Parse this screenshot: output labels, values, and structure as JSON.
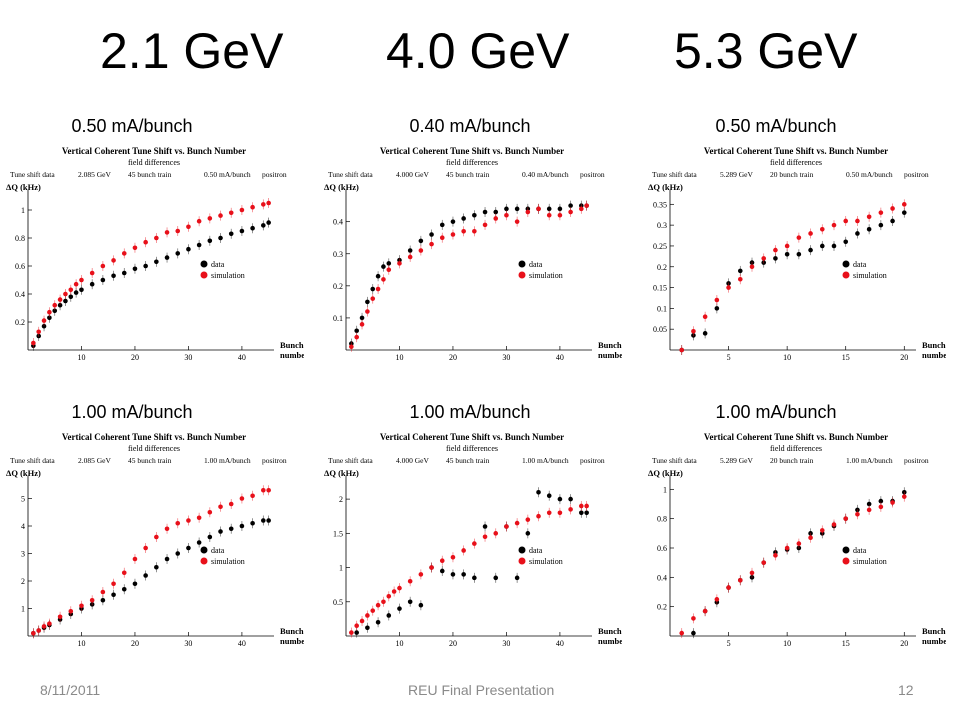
{
  "headings": {
    "energies": [
      "2.1 GeV",
      "4.0 GeV",
      "5.3 GeV"
    ],
    "currents_top": [
      "0.50 mA/bunch",
      "0.40 mA/bunch",
      "0.50 mA/bunch"
    ],
    "currents_bottom": [
      "1.00 mA/bunch",
      "1.00 mA/bunch",
      "1.00 mA/bunch"
    ]
  },
  "footer": {
    "date": "8/11/2011",
    "center": "REU Final Presentation",
    "page": "12"
  },
  "colors": {
    "data": "#000000",
    "simulation": "#e8101a"
  },
  "chart_data": [
    {
      "type": "scatter",
      "title": "Vertical Coherent Tune Shift vs. Bunch Number",
      "subtitle": "field differences",
      "info": [
        "Tune shift data",
        "2.085 GeV",
        "45 bunch train",
        "0.50 mA/bunch",
        "positron"
      ],
      "ylabel": "ΔQ (kHz)",
      "xlabel": [
        "Bunch",
        "number"
      ],
      "xlim": [
        0,
        46
      ],
      "ylim": [
        0,
        1.1
      ],
      "xticks": [
        10,
        20,
        30,
        40
      ],
      "yticks": [
        0.2,
        0.4,
        0.6,
        0.8,
        1.0
      ],
      "legend": "right",
      "series": [
        {
          "name": "data",
          "x": [
            1,
            2,
            3,
            4,
            5,
            6,
            7,
            8,
            9,
            10,
            12,
            14,
            16,
            18,
            20,
            22,
            24,
            26,
            28,
            30,
            32,
            34,
            36,
            38,
            40,
            42,
            44,
            45
          ],
          "y": [
            0.03,
            0.1,
            0.17,
            0.23,
            0.28,
            0.32,
            0.35,
            0.38,
            0.41,
            0.43,
            0.47,
            0.5,
            0.53,
            0.55,
            0.58,
            0.6,
            0.63,
            0.66,
            0.69,
            0.72,
            0.75,
            0.78,
            0.8,
            0.83,
            0.85,
            0.87,
            0.89,
            0.91
          ]
        },
        {
          "name": "simulation",
          "x": [
            1,
            2,
            3,
            4,
            5,
            6,
            7,
            8,
            9,
            10,
            12,
            14,
            16,
            18,
            20,
            22,
            24,
            26,
            28,
            30,
            32,
            34,
            36,
            38,
            40,
            42,
            44,
            45
          ],
          "y": [
            0.05,
            0.13,
            0.21,
            0.27,
            0.32,
            0.36,
            0.4,
            0.43,
            0.47,
            0.5,
            0.55,
            0.6,
            0.64,
            0.69,
            0.73,
            0.77,
            0.8,
            0.84,
            0.85,
            0.88,
            0.92,
            0.94,
            0.96,
            0.98,
            1.0,
            1.02,
            1.04,
            1.05
          ]
        }
      ]
    },
    {
      "type": "scatter",
      "title": "Vertical Coherent Tune Shift vs. Bunch Number",
      "subtitle": "field differences",
      "info": [
        "Tune shift data",
        "4.000 GeV",
        "45 bunch train",
        "0.40 mA/bunch",
        "positron"
      ],
      "ylabel": "ΔQ (kHz)",
      "xlabel": [
        "Bunch",
        "number"
      ],
      "xlim": [
        0,
        46
      ],
      "ylim": [
        0,
        0.48
      ],
      "xticks": [
        10,
        20,
        30,
        40
      ],
      "yticks": [
        0.1,
        0.2,
        0.3,
        0.4
      ],
      "legend": "right",
      "series": [
        {
          "name": "data",
          "x": [
            1,
            2,
            3,
            4,
            5,
            6,
            7,
            8,
            10,
            12,
            14,
            16,
            18,
            20,
            22,
            24,
            26,
            28,
            30,
            32,
            34,
            36,
            38,
            40,
            42,
            44,
            45
          ],
          "y": [
            0.02,
            0.06,
            0.1,
            0.15,
            0.19,
            0.23,
            0.26,
            0.27,
            0.28,
            0.31,
            0.34,
            0.36,
            0.39,
            0.4,
            0.41,
            0.42,
            0.43,
            0.43,
            0.44,
            0.44,
            0.44,
            0.44,
            0.44,
            0.44,
            0.45,
            0.45,
            0.45
          ]
        },
        {
          "name": "simulation",
          "x": [
            1,
            2,
            3,
            4,
            5,
            6,
            7,
            8,
            10,
            12,
            14,
            16,
            18,
            20,
            22,
            24,
            26,
            28,
            30,
            32,
            34,
            36,
            38,
            40,
            42,
            44,
            45
          ],
          "y": [
            0.01,
            0.04,
            0.08,
            0.12,
            0.16,
            0.19,
            0.22,
            0.25,
            0.27,
            0.29,
            0.31,
            0.33,
            0.35,
            0.36,
            0.37,
            0.37,
            0.39,
            0.41,
            0.42,
            0.4,
            0.43,
            0.44,
            0.42,
            0.42,
            0.43,
            0.44,
            0.45
          ]
        }
      ]
    },
    {
      "type": "scatter",
      "title": "Vertical Coherent Tune Shift vs. Bunch Number",
      "subtitle": "field differences",
      "info": [
        "Tune shift data",
        "5.289 GeV",
        "20 bunch train",
        "0.50 mA/bunch",
        "positron"
      ],
      "ylabel": "ΔQ (kHz)",
      "xlabel": [
        "Bunch",
        "number"
      ],
      "xlim": [
        0,
        21
      ],
      "ylim": [
        0,
        0.37
      ],
      "xticks": [
        5,
        10,
        15,
        20
      ],
      "yticks": [
        0.05,
        0.1,
        0.15,
        0.2,
        0.25,
        0.3,
        0.35
      ],
      "legend": "right",
      "series": [
        {
          "name": "data",
          "x": [
            1,
            2,
            3,
            4,
            5,
            6,
            7,
            8,
            9,
            10,
            11,
            12,
            13,
            14,
            15,
            16,
            17,
            18,
            19,
            20
          ],
          "y": [
            0.0,
            0.035,
            0.04,
            0.1,
            0.16,
            0.19,
            0.21,
            0.21,
            0.22,
            0.23,
            0.23,
            0.24,
            0.25,
            0.25,
            0.26,
            0.28,
            0.29,
            0.3,
            0.31,
            0.33
          ]
        },
        {
          "name": "simulation",
          "x": [
            1,
            2,
            3,
            4,
            5,
            6,
            7,
            8,
            9,
            10,
            11,
            12,
            13,
            14,
            15,
            16,
            17,
            18,
            19,
            20
          ],
          "y": [
            0.0,
            0.045,
            0.08,
            0.12,
            0.15,
            0.17,
            0.2,
            0.22,
            0.24,
            0.25,
            0.27,
            0.28,
            0.29,
            0.3,
            0.31,
            0.31,
            0.32,
            0.33,
            0.34,
            0.35
          ]
        }
      ]
    },
    {
      "type": "scatter",
      "title": "Vertical Coherent Tune Shift vs. Bunch Number",
      "subtitle": "field differences",
      "info": [
        "Tune shift data",
        "2.085 GeV",
        "45 bunch train",
        "1.00 mA/bunch",
        "positron"
      ],
      "ylabel": "ΔQ (kHz)",
      "xlabel": [
        "Bunch",
        "number"
      ],
      "xlim": [
        0,
        46
      ],
      "ylim": [
        0,
        5.6
      ],
      "xticks": [
        10,
        20,
        30,
        40
      ],
      "yticks": [
        1,
        2,
        3,
        4,
        5
      ],
      "legend": "right",
      "series": [
        {
          "name": "data",
          "x": [
            1,
            2,
            3,
            4,
            6,
            8,
            10,
            12,
            14,
            16,
            18,
            20,
            22,
            24,
            26,
            28,
            30,
            32,
            34,
            36,
            38,
            40,
            42,
            44,
            45
          ],
          "y": [
            0.1,
            0.2,
            0.3,
            0.4,
            0.6,
            0.8,
            1.0,
            1.15,
            1.3,
            1.5,
            1.7,
            1.9,
            2.2,
            2.5,
            2.8,
            3.0,
            3.2,
            3.4,
            3.6,
            3.8,
            3.9,
            4.0,
            4.1,
            4.2,
            4.2
          ]
        },
        {
          "name": "simulation",
          "x": [
            1,
            2,
            3,
            4,
            6,
            8,
            10,
            12,
            14,
            16,
            18,
            20,
            22,
            24,
            26,
            28,
            30,
            32,
            34,
            36,
            38,
            40,
            42,
            44,
            45
          ],
          "y": [
            0.1,
            0.2,
            0.35,
            0.45,
            0.7,
            0.9,
            1.1,
            1.3,
            1.6,
            1.9,
            2.3,
            2.8,
            3.2,
            3.6,
            3.9,
            4.1,
            4.2,
            4.3,
            4.5,
            4.7,
            4.8,
            5.0,
            5.1,
            5.3,
            5.3
          ]
        }
      ]
    },
    {
      "type": "scatter",
      "title": "Vertical Coherent Tune Shift vs. Bunch Number",
      "subtitle": "field differences",
      "info": [
        "Tune shift data",
        "4.000 GeV",
        "45 bunch train",
        "1.00 mA/bunch",
        "positron"
      ],
      "ylabel": "ΔQ (kHz)",
      "xlabel": [
        "Bunch",
        "number"
      ],
      "xlim": [
        0,
        46
      ],
      "ylim": [
        0,
        2.25
      ],
      "xticks": [
        10,
        20,
        30,
        40
      ],
      "yticks": [
        0.5,
        1.0,
        1.5,
        2.0
      ],
      "legend": "right",
      "series": [
        {
          "name": "data",
          "x": [
            2,
            4,
            6,
            8,
            10,
            12,
            14,
            16,
            18,
            20,
            22,
            24,
            26,
            28,
            30,
            32,
            34,
            36,
            38,
            40,
            42,
            44,
            45
          ],
          "y": [
            0.05,
            0.12,
            0.2,
            0.3,
            0.4,
            0.5,
            0.45,
            1.0,
            0.95,
            0.9,
            0.9,
            0.85,
            1.6,
            0.85,
            1.6,
            0.85,
            1.5,
            2.1,
            2.05,
            2.0,
            2.0,
            1.8,
            1.8
          ]
        },
        {
          "name": "simulation",
          "x": [
            1,
            2,
            3,
            4,
            5,
            6,
            7,
            8,
            9,
            10,
            12,
            14,
            16,
            18,
            20,
            22,
            24,
            26,
            28,
            30,
            32,
            34,
            36,
            38,
            40,
            42,
            44,
            45
          ],
          "y": [
            0.05,
            0.15,
            0.22,
            0.3,
            0.37,
            0.45,
            0.5,
            0.58,
            0.65,
            0.7,
            0.8,
            0.9,
            1.0,
            1.1,
            1.15,
            1.25,
            1.35,
            1.45,
            1.5,
            1.6,
            1.65,
            1.7,
            1.75,
            1.8,
            1.8,
            1.85,
            1.9,
            1.9
          ]
        }
      ]
    },
    {
      "type": "scatter",
      "title": "Vertical Coherent Tune Shift vs. Bunch Number",
      "subtitle": "field differences",
      "info": [
        "Tune shift data",
        "5.289 GeV",
        "20 bunch train",
        "1.00 mA/bunch",
        "positron"
      ],
      "ylabel": "ΔQ (kHz)",
      "xlabel": [
        "Bunch",
        "number"
      ],
      "xlim": [
        0,
        21
      ],
      "ylim": [
        0,
        1.05
      ],
      "xticks": [
        5,
        10,
        15,
        20
      ],
      "yticks": [
        0.2,
        0.4,
        0.6,
        0.8,
        1.0
      ],
      "legend": "right",
      "series": [
        {
          "name": "data",
          "x": [
            2,
            3,
            4,
            5,
            6,
            7,
            8,
            9,
            10,
            11,
            12,
            13,
            14,
            15,
            16,
            17,
            18,
            19,
            20
          ],
          "y": [
            0.02,
            0.17,
            0.23,
            0.33,
            0.38,
            0.4,
            0.5,
            0.57,
            0.59,
            0.6,
            0.7,
            0.7,
            0.75,
            0.8,
            0.86,
            0.9,
            0.92,
            0.92,
            0.98
          ]
        },
        {
          "name": "simulation",
          "x": [
            1,
            2,
            3,
            4,
            5,
            6,
            7,
            8,
            9,
            10,
            11,
            12,
            13,
            14,
            15,
            16,
            17,
            18,
            19,
            20
          ],
          "y": [
            0.02,
            0.12,
            0.17,
            0.25,
            0.33,
            0.38,
            0.43,
            0.5,
            0.55,
            0.6,
            0.63,
            0.67,
            0.72,
            0.76,
            0.8,
            0.83,
            0.86,
            0.88,
            0.91,
            0.95
          ]
        }
      ]
    }
  ]
}
